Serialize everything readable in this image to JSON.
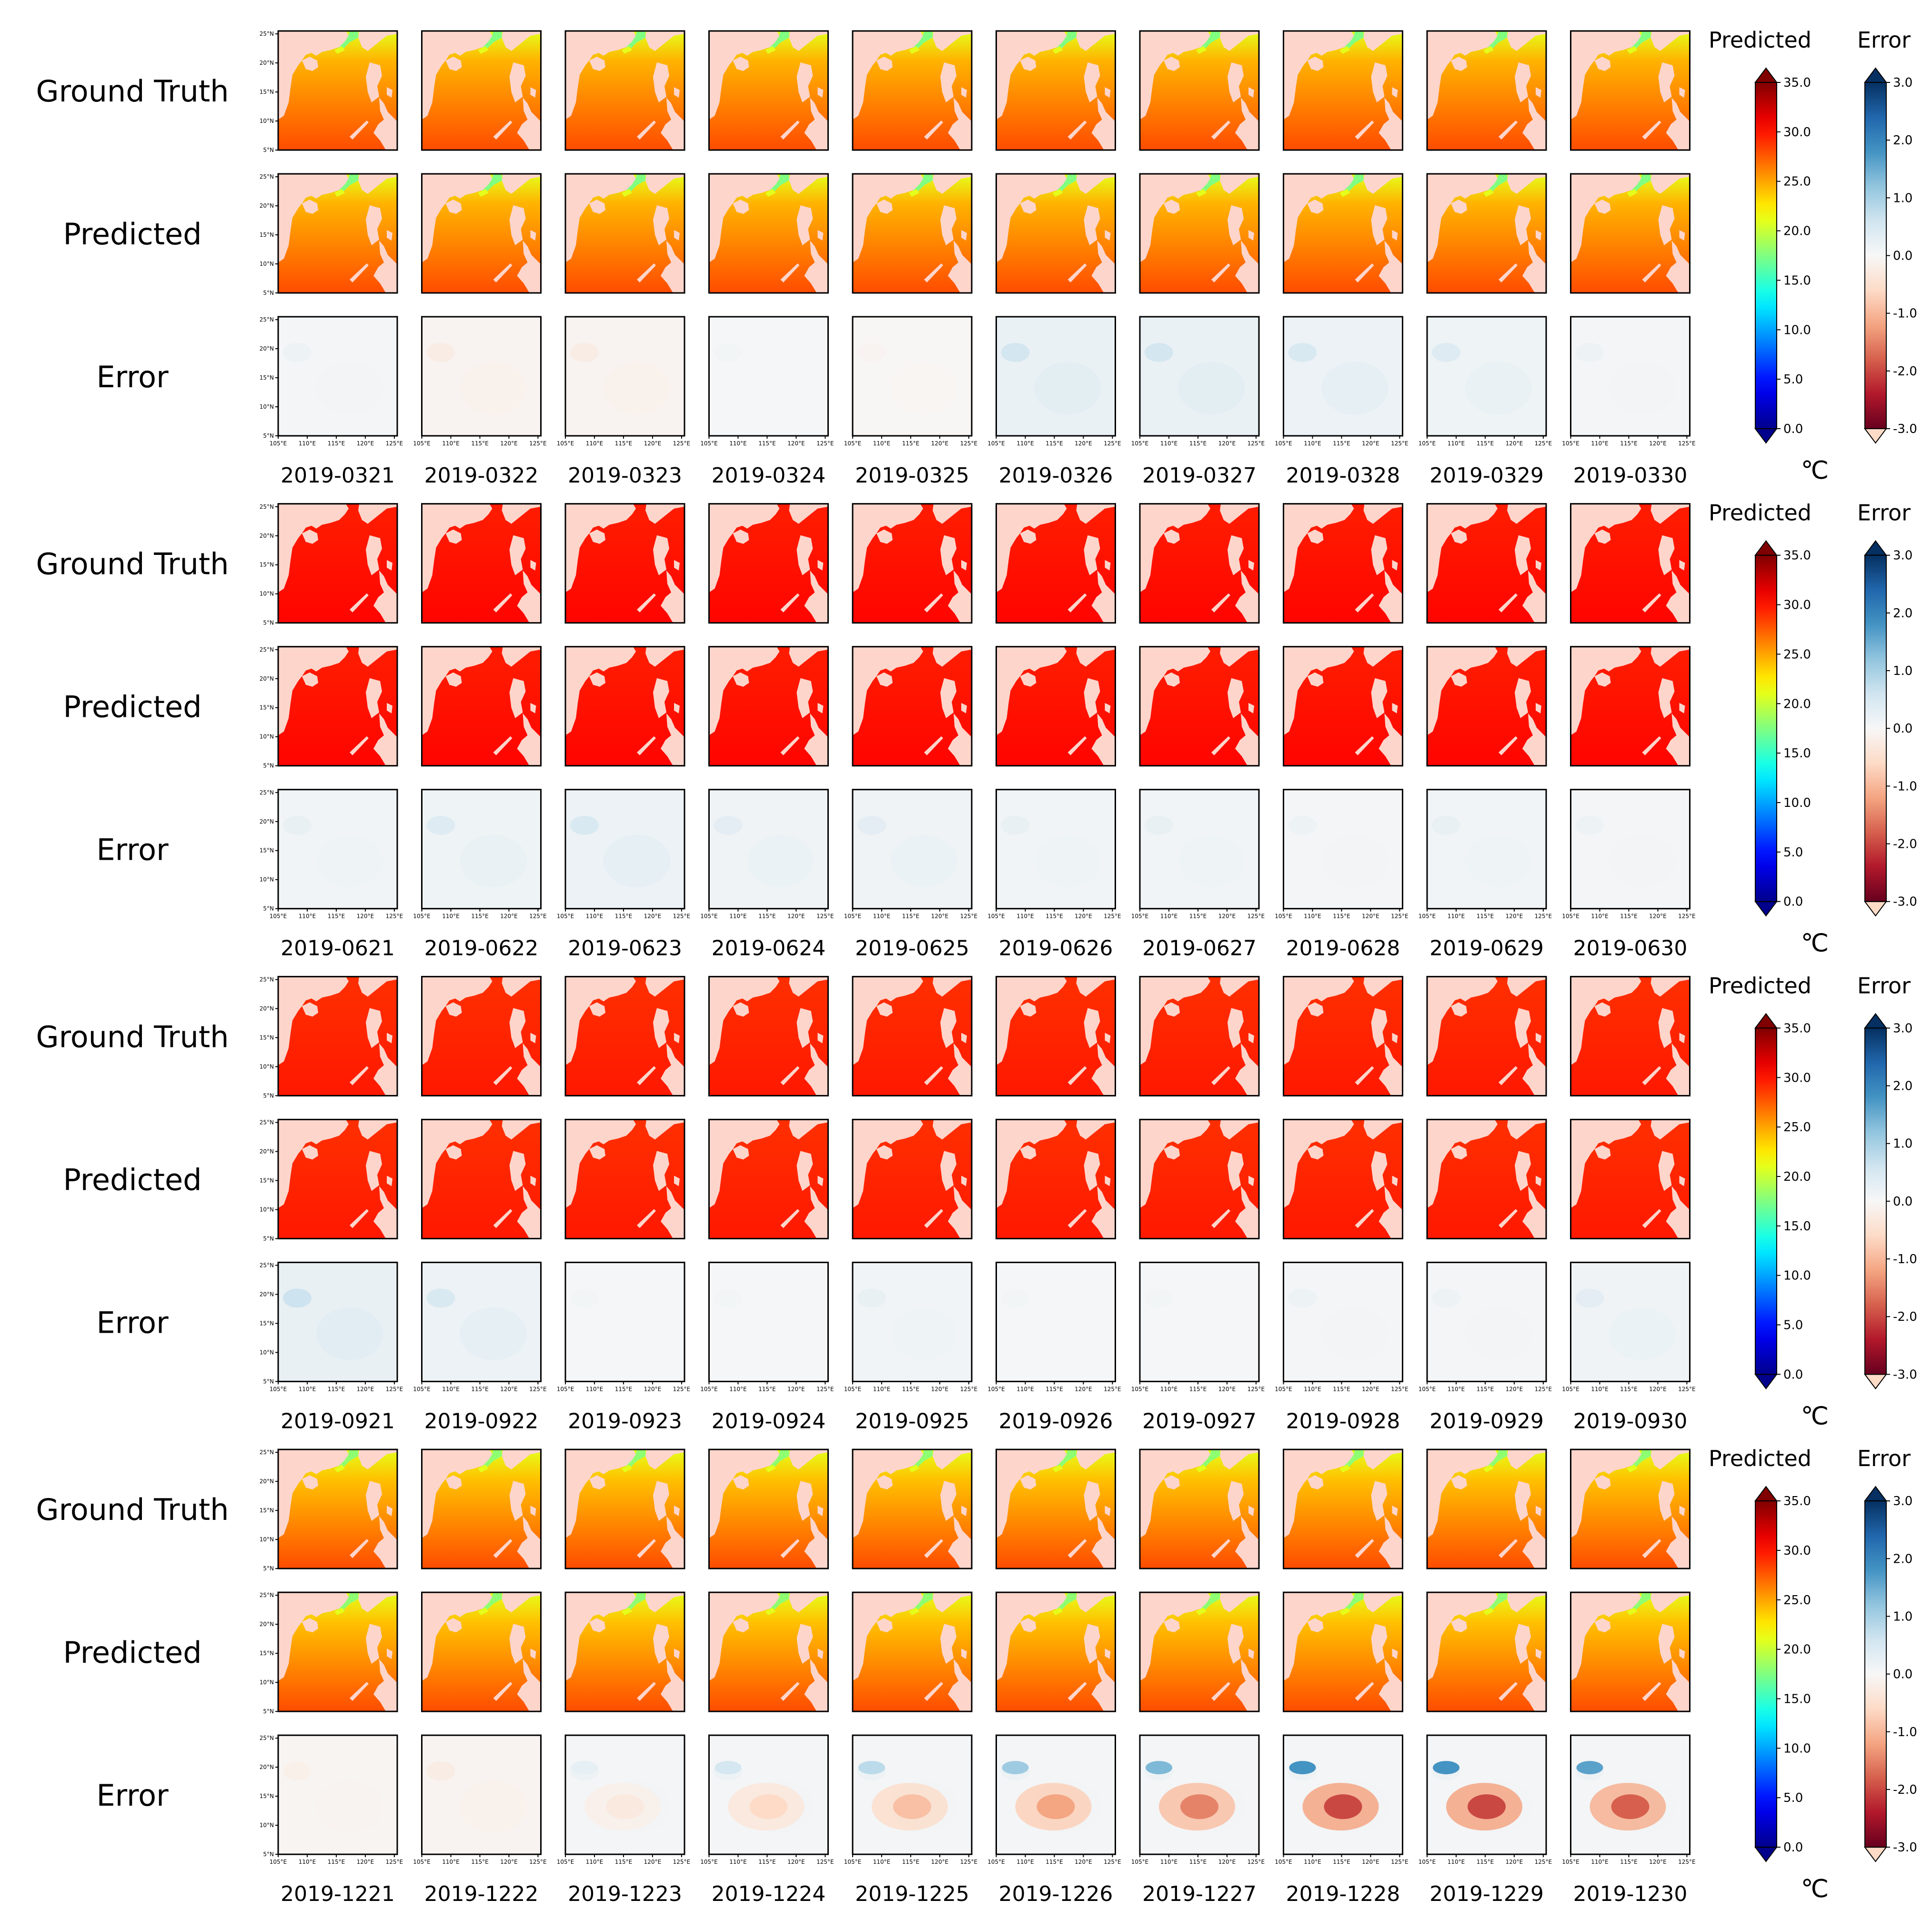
{
  "chart_data": {
    "type": "heatmap",
    "title": "",
    "row_labels": [
      "Ground Truth",
      "Predicted",
      "Error"
    ],
    "lat_ticks": [
      "5°N",
      "10°N",
      "15°N",
      "20°N",
      "25°N"
    ],
    "lon_ticks": [
      "105°E",
      "110°E",
      "115°E",
      "120°E",
      "125°E"
    ],
    "lat_range": [
      5,
      25.5
    ],
    "lon_range": [
      105,
      125.5
    ],
    "unit": "℃",
    "colorbars": {
      "predicted": {
        "label": "Predicted",
        "range": [
          0.0,
          35.0
        ],
        "ticks": [
          "0.0",
          "5.0",
          "10.0",
          "15.0",
          "20.0",
          "25.0",
          "30.0",
          "35.0"
        ],
        "colormap": "jet"
      },
      "error": {
        "label": "Error",
        "range": [
          -3.0,
          3.0
        ],
        "ticks": [
          "-3.0",
          "-2.0",
          "-1.0",
          "0.0",
          "1.0",
          "2.0",
          "3.0"
        ],
        "colormap": "RdBu"
      }
    },
    "land_color": "#fdd5cb",
    "blocks": [
      {
        "dates": [
          "2019-0321",
          "2019-0322",
          "2019-0323",
          "2019-0324",
          "2019-0325",
          "2019-0326",
          "2019-0327",
          "2019-0328",
          "2019-0329",
          "2019-0330"
        ],
        "sst_south": 28.0,
        "sst_north": 24.5,
        "coastal_cold": 17.5,
        "error_bias": [
          0.1,
          -0.15,
          -0.15,
          0.05,
          -0.05,
          0.35,
          0.35,
          0.3,
          0.25,
          0.1
        ]
      },
      {
        "dates": [
          "2019-0621",
          "2019-0622",
          "2019-0623",
          "2019-0624",
          "2019-0625",
          "2019-0626",
          "2019-0627",
          "2019-0628",
          "2019-0629",
          "2019-0630"
        ],
        "sst_south": 30.5,
        "sst_north": 29.8,
        "coastal_cold": 29.5,
        "error_bias": [
          0.15,
          0.25,
          0.3,
          0.2,
          0.2,
          0.15,
          0.15,
          0.1,
          0.15,
          0.1
        ]
      },
      {
        "dates": [
          "2019-0921",
          "2019-0922",
          "2019-0923",
          "2019-0924",
          "2019-0925",
          "2019-0926",
          "2019-0927",
          "2019-0928",
          "2019-0929",
          "2019-0930"
        ],
        "sst_south": 29.8,
        "sst_north": 29.2,
        "coastal_cold": 28.8,
        "error_bias": [
          0.4,
          0.3,
          0.05,
          0.05,
          0.15,
          0.05,
          0.05,
          0.1,
          0.1,
          0.2
        ]
      },
      {
        "dates": [
          "2019-1221",
          "2019-1222",
          "2019-1223",
          "2019-1224",
          "2019-1225",
          "2019-1226",
          "2019-1227",
          "2019-1228",
          "2019-1229",
          "2019-1230"
        ],
        "sst_south": 28.0,
        "sst_north": 24.0,
        "coastal_cold": 18.0,
        "error_bias": [
          -0.1,
          -0.15,
          0.1,
          0.1,
          0.1,
          0.1,
          0.1,
          0.1,
          0.1,
          0.1
        ],
        "error_warm_patch": [
          0.0,
          0.0,
          -0.3,
          -0.6,
          -0.9,
          -1.2,
          -1.5,
          -2.0,
          -2.0,
          -1.8
        ]
      }
    ]
  }
}
